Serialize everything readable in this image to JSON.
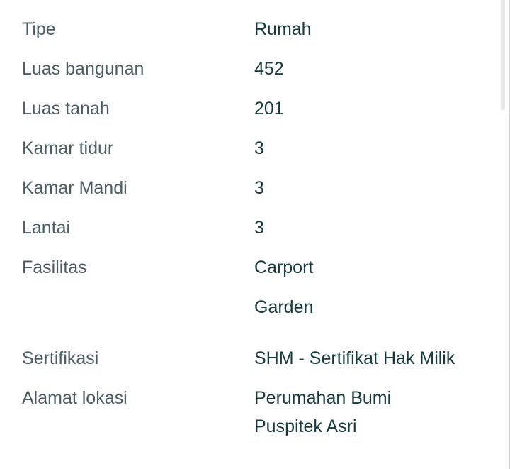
{
  "details": [
    {
      "label": "Tipe",
      "value": "Rumah"
    },
    {
      "label": "Luas bangunan",
      "value": "452"
    },
    {
      "label": "Luas tanah",
      "value": "201"
    },
    {
      "label": "Kamar tidur",
      "value": "3"
    },
    {
      "label": "Kamar Mandi",
      "value": "3"
    },
    {
      "label": "Lantai",
      "value": "3"
    }
  ],
  "facilities": {
    "label": "Fasilitas",
    "values": [
      "Carport",
      "Garden"
    ]
  },
  "certification": {
    "label": "Sertifikasi",
    "value": "SHM - Sertifikat Hak Milik"
  },
  "address": {
    "label": "Alamat lokasi",
    "lines": [
      "Perumahan Bumi",
      "Puspitek Asri"
    ]
  }
}
